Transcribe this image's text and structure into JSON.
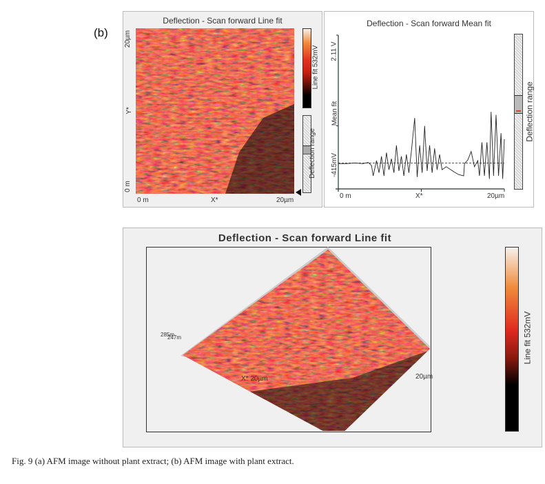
{
  "panel_label": "(b)",
  "map2d": {
    "title": "Deflection - Scan forward   Line fit",
    "y_top": "20µm",
    "y_mid": "Y*",
    "y_bottom": "0 m",
    "x_left": "0 m",
    "x_mid": "X*",
    "x_right": "20µm",
    "colorbar_label": "Line fit 532mV",
    "range_label": "Deflection range"
  },
  "profile": {
    "title": "Deflection - Scan forward   Mean fit",
    "range_label": "Deflection range"
  },
  "view3d": {
    "title": "Deflection - Scan forward   Line fit",
    "z_label_a": "285m",
    "z_label_b": "247m",
    "x_label": "X* 20µm",
    "y_label": "20µm",
    "colorbar_label": "Line fit 532mV"
  },
  "caption": "Fig. 9  (a) AFM image without plant extract; (b) AFM image with plant extract.",
  "colors": {
    "colormap": [
      "#000000",
      "#e0281a",
      "#f08a3a",
      "#f4efe8"
    ],
    "accent": "#e04020"
  },
  "chart_data": {
    "type": "line",
    "title": "Deflection - Scan forward   Mean fit",
    "xlabel": "X*",
    "ylabel": "Mean fit",
    "x_ticks": [
      "0 m",
      "X*",
      "20µm"
    ],
    "y_ticks": [
      "-415mV",
      "Mean fit",
      "2.11 V"
    ],
    "xlim": [
      0,
      20
    ],
    "ylim": [
      -0.415,
      2.11
    ],
    "reference_line": 0.01,
    "x": [
      0,
      1,
      2,
      3,
      3.6,
      4,
      4.2,
      4.6,
      4.9,
      5.2,
      5.5,
      5.8,
      6.1,
      6.4,
      6.7,
      7,
      7.3,
      7.6,
      7.9,
      8.2,
      8.5,
      8.8,
      9.2,
      9.5,
      9.8,
      10.1,
      10.4,
      10.7,
      11,
      11.3,
      11.6,
      11.9,
      12.2,
      12.5,
      13,
      14,
      14.5,
      15.1,
      15.2,
      15.6,
      16,
      16.4,
      16.8,
      17,
      17.3,
      17.6,
      17.9,
      18.2,
      18.4,
      18.7,
      19,
      19.3,
      19.6,
      19.8,
      20
    ],
    "y": [
      0,
      0,
      0.01,
      0,
      0.02,
      -0.03,
      -0.2,
      0.05,
      -0.15,
      0.12,
      -0.2,
      0.18,
      -0.1,
      0.08,
      -0.15,
      0.3,
      -0.12,
      0.12,
      -0.2,
      0.15,
      -0.15,
      0.2,
      0.75,
      -0.22,
      0.3,
      -0.15,
      0.62,
      -0.12,
      0.3,
      -0.15,
      0.25,
      -0.1,
      0.15,
      -0.1,
      -0.05,
      -0.14,
      -0.18,
      -0.2,
      0,
      0.06,
      0.2,
      -0.05,
      0.05,
      -0.2,
      0.35,
      -0.2,
      0.35,
      -0.25,
      0.85,
      -0.2,
      0.8,
      -0.2,
      0.5,
      -0.25,
      0.4
    ]
  }
}
